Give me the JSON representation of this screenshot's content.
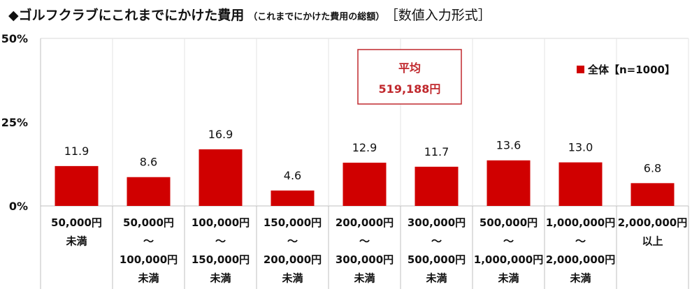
{
  "chart_data": {
    "type": "bar",
    "title": "◆ゴルフクラブにこれまでにかけた費用",
    "subtitle": "（これまでにかけた費用の総額）",
    "format_note": "［数値入力形式］",
    "categories": [
      [
        "50,000円",
        "未満"
      ],
      [
        "50,000円",
        "～",
        "100,000円",
        "未満"
      ],
      [
        "100,000円",
        "～",
        "150,000円",
        "未満"
      ],
      [
        "150,000円",
        "～",
        "200,000円",
        "未満"
      ],
      [
        "200,000円",
        "～",
        "300,000円",
        "未満"
      ],
      [
        "300,000円",
        "～",
        "500,000円",
        "未満"
      ],
      [
        "500,000円",
        "～",
        "1,000,000円",
        "未満"
      ],
      [
        "1,000,000円",
        "～",
        "2,000,000円",
        "未満"
      ],
      [
        "2,000,000円",
        "以上"
      ]
    ],
    "series": [
      {
        "name": "全体【n=1000】",
        "values": [
          11.9,
          8.6,
          16.9,
          4.6,
          12.9,
          11.7,
          13.6,
          13.0,
          6.8
        ],
        "color": "#d00000"
      }
    ],
    "data_labels": [
      "11.9",
      "8.6",
      "16.9",
      "4.6",
      "12.9",
      "11.7",
      "13.6",
      "13.0",
      "6.8"
    ],
    "yticks": [
      "0%",
      "25%",
      "50%"
    ],
    "ytick_values": [
      0,
      25,
      50
    ],
    "ylim": [
      0,
      50
    ],
    "grid": "vertical category separators",
    "legend": "top-right",
    "annotation": {
      "label": "平均",
      "value": "519,188円",
      "color": "#c0282d"
    }
  }
}
